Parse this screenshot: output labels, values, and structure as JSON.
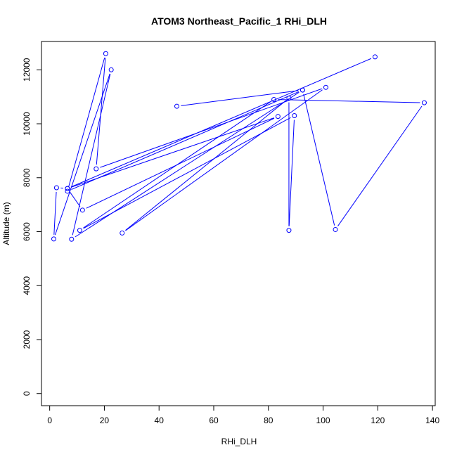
{
  "chart_data": {
    "type": "line",
    "title": "ATOM3 Northeast_Pacific_1 RHi_DLH",
    "xlabel": "RHi_DLH",
    "ylabel": "Altitude (m)",
    "xlim": [
      -3,
      141
    ],
    "ylim": [
      -450,
      13050
    ],
    "xticks": [
      0,
      20,
      40,
      60,
      80,
      100,
      120,
      140
    ],
    "yticks": [
      0,
      2000,
      4000,
      6000,
      8000,
      10000,
      12000
    ],
    "grid": false,
    "legend": "none",
    "series": [
      {
        "color": "#0000ff",
        "marker": "open-circle",
        "points": [
          {
            "x": 46.5,
            "y": 10650
          },
          {
            "x": 92.5,
            "y": 11250
          },
          {
            "x": 6.5,
            "y": 7500
          },
          {
            "x": 20.5,
            "y": 12600
          },
          {
            "x": 17,
            "y": 8330
          },
          {
            "x": 101,
            "y": 11350
          },
          {
            "x": 26.5,
            "y": 5950
          },
          {
            "x": 87.5,
            "y": 10950
          },
          {
            "x": 87.5,
            "y": 6050
          },
          {
            "x": 89.5,
            "y": 10300
          },
          {
            "x": 11,
            "y": 6050
          },
          {
            "x": 82,
            "y": 10900
          },
          {
            "x": 137,
            "y": 10780
          },
          {
            "x": 104.5,
            "y": 6080
          },
          {
            "x": 92.5,
            "y": 11250
          },
          {
            "x": 8,
            "y": 5720
          },
          {
            "x": 22.5,
            "y": 12000
          },
          {
            "x": 1.5,
            "y": 5730
          },
          {
            "x": 2.5,
            "y": 7630
          },
          {
            "x": 6.5,
            "y": 7600
          },
          {
            "x": 12,
            "y": 6800
          },
          {
            "x": 83.5,
            "y": 10270
          },
          {
            "x": 6.5,
            "y": 7600
          },
          {
            "x": 119,
            "y": 12480
          }
        ]
      }
    ]
  }
}
